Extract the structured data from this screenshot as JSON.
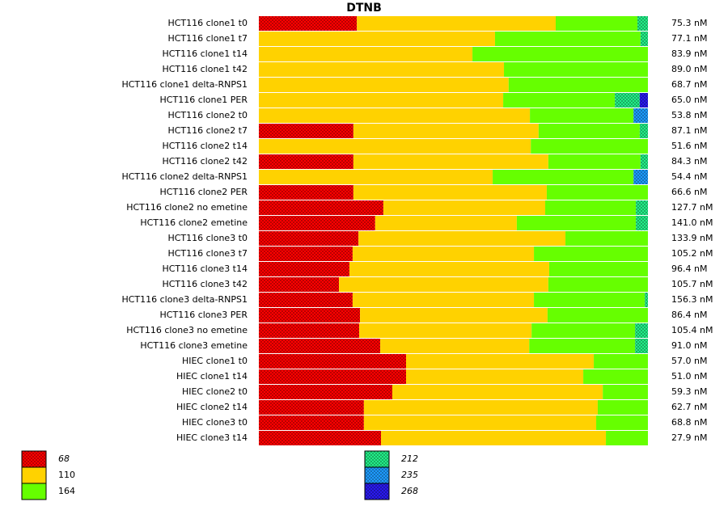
{
  "chart_data": {
    "type": "stacked_bar_100",
    "title": "DTNB",
    "categories": [
      "HCT116 clone1 t0",
      "HCT116 clone1 t7",
      "HCT116 clone1 t14",
      "HCT116 clone1 t42",
      "HCT116 clone1 delta-RNPS1",
      "HCT116 clone1 PER",
      "HCT116 clone2 t0",
      "HCT116 clone2 t7",
      "HCT116 clone2 t14",
      "HCT116 clone2 t42",
      "HCT116 clone2 delta-RNPS1",
      "HCT116 clone2 PER",
      "HCT116 clone2 no emetine",
      "HCT116 clone2 emetine",
      "HCT116 clone3 t0",
      "HCT116 clone3 t7",
      "HCT116 clone3 t14",
      "HCT116 clone3 t42",
      "HCT116 clone3 delta-RNPS1",
      "HCT116 clone3 PER",
      "HCT116 clone3 no emetine",
      "HCT116 clone3 emetine",
      "HIEC clone1 t0",
      "HIEC clone1 t14",
      "HIEC clone2 t0",
      "HIEC clone2 t14",
      "HIEC clone3 t0",
      "HIEC clone3 t14"
    ],
    "row_labels": [
      "75.3 nM",
      "77.1 nM",
      "83.9 nM",
      "89.0 nM",
      "68.7 nM",
      "65.0 nM",
      "53.8 nM",
      "87.1 nM",
      "51.6 nM",
      "84.3 nM",
      "54.4 nM",
      "66.6 nM",
      "127.7 nM",
      "141.0 nM",
      "133.9 nM",
      "105.2 nM",
      "96.4 nM",
      "105.7 nM",
      "156.3 nM",
      "86.4 nM",
      "105.4 nM",
      "91.0 nM",
      "57.0 nM",
      "51.0 nM",
      "59.3 nM",
      "62.7 nM",
      "68.8 nM",
      "27.9 nM"
    ],
    "series": [
      {
        "name": "68",
        "color": "#ff0000",
        "pattern": true,
        "values": [
          25.2,
          0,
          0,
          0,
          0,
          0,
          0,
          24.3,
          0,
          24.3,
          0,
          24.3,
          32.0,
          29.9,
          25.6,
          24.1,
          23.3,
          20.6,
          24.1,
          26.0,
          25.8,
          31.2,
          37.8,
          37.8,
          34.3,
          27.0,
          27.0,
          31.4
        ]
      },
      {
        "name": "110",
        "color": "#ffd200",
        "pattern": false,
        "values": [
          51.1,
          60.7,
          54.9,
          63.0,
          64.2,
          62.8,
          69.6,
          47.6,
          69.9,
          50.1,
          60.1,
          49.7,
          41.6,
          36.4,
          53.2,
          46.6,
          51.4,
          53.8,
          46.6,
          48.2,
          44.3,
          38.3,
          48.2,
          45.5,
          54.1,
          60.1,
          59.7,
          57.8
        ]
      },
      {
        "name": "164",
        "color": "#66ff00",
        "pattern": false,
        "values": [
          21.0,
          37.4,
          45.1,
          37.0,
          35.8,
          28.7,
          26.6,
          26.0,
          30.1,
          23.7,
          36.2,
          26.0,
          23.3,
          30.6,
          21.2,
          29.3,
          25.4,
          25.6,
          28.5,
          25.8,
          26.6,
          27.2,
          13.9,
          16.6,
          11.6,
          12.9,
          13.3,
          10.8
        ]
      },
      {
        "name": "212",
        "color": "#22ee88",
        "pattern": true,
        "values": [
          2.7,
          1.9,
          0,
          0,
          0,
          6.4,
          0,
          2.1,
          0,
          1.9,
          0,
          0,
          3.1,
          3.1,
          0,
          0,
          0,
          0,
          0.8,
          0,
          3.3,
          3.3,
          0,
          0,
          0,
          0,
          0,
          0
        ]
      },
      {
        "name": "235",
        "color": "#1e9bff",
        "pattern": true,
        "values": [
          0,
          0,
          0,
          0,
          0,
          0,
          3.7,
          0,
          0,
          0,
          3.7,
          0,
          0,
          0,
          0,
          0,
          0,
          0,
          0,
          0,
          0,
          0,
          0,
          0,
          0,
          0,
          0,
          0
        ]
      },
      {
        "name": "268",
        "color": "#2a1aee",
        "pattern": true,
        "values": [
          0,
          0,
          0,
          0,
          0,
          2.1,
          0,
          0,
          0,
          0,
          0,
          0,
          0,
          0,
          0,
          0,
          0,
          0,
          0,
          0,
          0,
          0,
          0,
          0,
          0,
          0,
          0,
          0
        ]
      }
    ]
  }
}
